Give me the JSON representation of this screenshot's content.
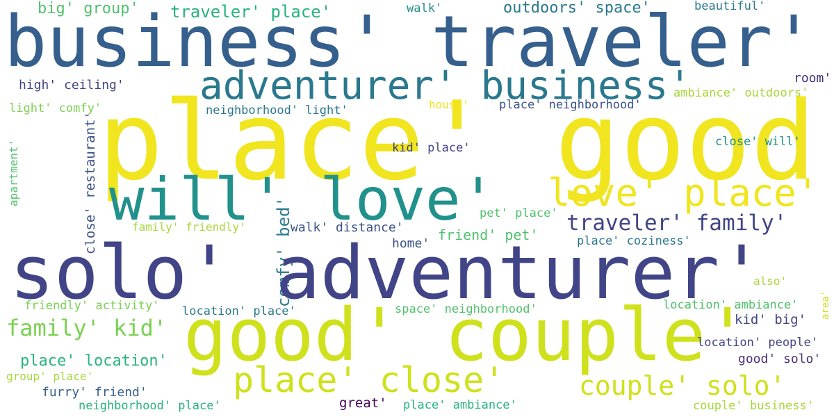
{
  "palette": {
    "yellow": "#f0e51f",
    "lime": "#cfe11c",
    "green_light": "#a6d93a",
    "green": "#7ad151",
    "green_mid": "#4fc16b",
    "teal_green": "#27b37f",
    "teal": "#21918c",
    "blue_teal": "#2a788e",
    "blue": "#355f8d",
    "indigo": "#3b528b",
    "dark_indigo": "#414487",
    "purple": "#46327e",
    "dark_purple": "#440154"
  },
  "words": [
    "big' group'",
    "traveler' place'",
    "walk'",
    "outdoors' space'",
    "beautiful'",
    "business' traveler'",
    "adventurer' business'",
    "room'",
    "high' ceiling'",
    "ambiance' outdoors'",
    "light' comfy'",
    "neighborhood' light'",
    "house'",
    "place' neighborhood'",
    "place' good'",
    "close' will'",
    "kid' place'",
    "apartment'",
    "close' restaurant'",
    "will' love'",
    "love' place'",
    "comfy' bed'",
    "pet' place'",
    "traveler' family'",
    "family' friendly'",
    "walk' distance'",
    "friend' pet'",
    "home'",
    "place' coziness'",
    "solo' adventurer'",
    "also'",
    "area'",
    "friendly' activity'",
    "location' place'",
    "space' neighborhood'",
    "location' ambiance'",
    "family' kid'",
    "good' couple'",
    "kid' big'",
    "location' people'",
    "place' location'",
    "good' solo'",
    "group' place'",
    "place' close'",
    "couple' solo'",
    "furry' friend'",
    "great'",
    "neighborhood' place'",
    "place' ambiance'",
    "couple' business'"
  ]
}
